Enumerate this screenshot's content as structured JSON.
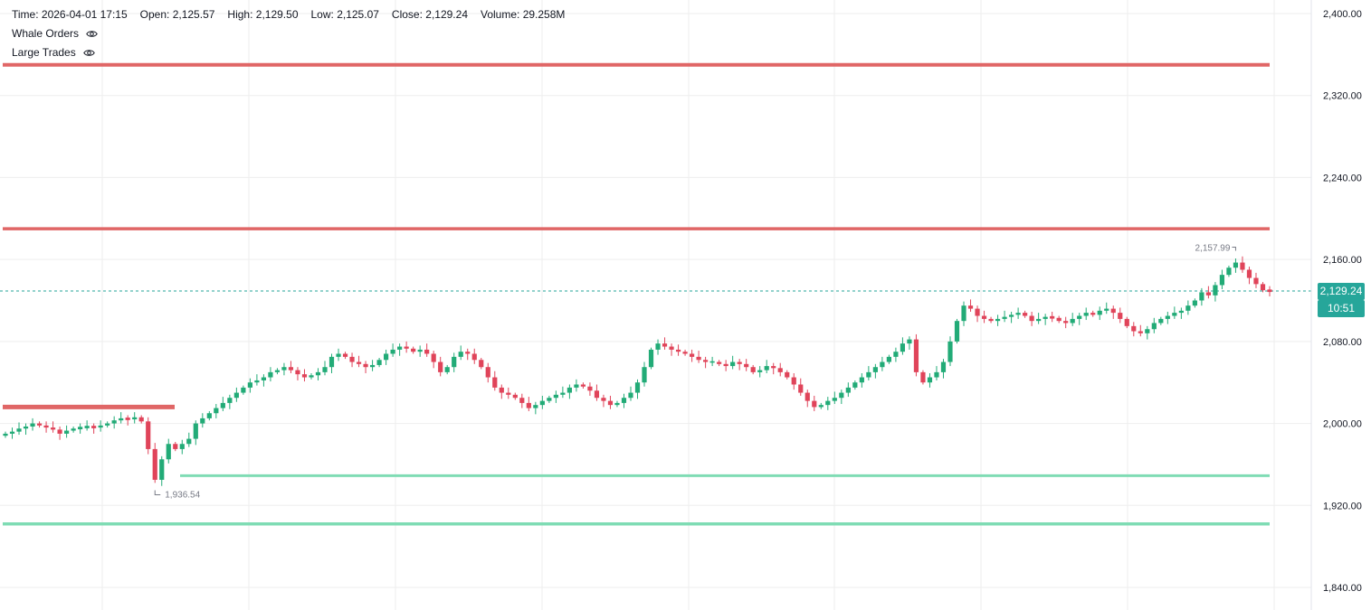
{
  "legend": {
    "time_label": "Time:",
    "time": "2026-04-01 17:15",
    "open_label": "Open:",
    "open": "2,125.57",
    "high_label": "High:",
    "high": "2,129.50",
    "low_label": "Low:",
    "low": "2,125.07",
    "close_label": "Close:",
    "close": "2,129.24",
    "volume_label": "Volume:",
    "volume": "29.258M",
    "indicators": [
      {
        "name": "Whale Orders",
        "icon": "eye-icon"
      },
      {
        "name": "Large Trades",
        "icon": "eye-icon"
      }
    ]
  },
  "colors": {
    "up": "#26a69a",
    "down": "#ef5350",
    "up_body": "#22ab77",
    "down_body": "#e0445a",
    "resistance": "#e06666",
    "support": "#7fdcb4",
    "last_price_line": "#26a69a",
    "grid": "#eeeeee"
  },
  "last_price": {
    "value": "2,129.24",
    "countdown": "10:51"
  },
  "markers": {
    "high": "2,157.99",
    "low": "1,936.54"
  },
  "chart_data": {
    "type": "candlestick",
    "y_axis_position": "right",
    "ylim": [
      1830,
      2410
    ],
    "y_ticks": [
      "2,400.00",
      "2,320.00",
      "2,240.00",
      "2,160.00",
      "2,080.00",
      "2,000.00",
      "1,920.00",
      "1,840.00"
    ],
    "y_tick_values": [
      2400,
      2320,
      2240,
      2160,
      2080,
      2000,
      1920,
      1840
    ],
    "grid": true,
    "last_price": 2129.24,
    "levels": [
      {
        "kind": "resistance",
        "price": 2350
      },
      {
        "kind": "resistance",
        "price": 2190
      },
      {
        "kind": "resistance",
        "price": 2016
      },
      {
        "kind": "support",
        "price": 1949
      },
      {
        "kind": "support",
        "price": 1902
      }
    ],
    "closes": [
      1990,
      1992,
      1995,
      1997,
      2000,
      1998,
      1996,
      1994,
      1990,
      1993,
      1995,
      1996,
      1997,
      1996,
      1998,
      2000,
      2003,
      2005,
      2004,
      2006,
      2002,
      1975,
      1945,
      1965,
      1980,
      1975,
      1980,
      1985,
      2000,
      2005,
      2010,
      2015,
      2020,
      2025,
      2030,
      2035,
      2040,
      2042,
      2045,
      2050,
      2052,
      2055,
      2052,
      2048,
      2045,
      2047,
      2050,
      2055,
      2065,
      2068,
      2065,
      2060,
      2058,
      2055,
      2057,
      2062,
      2068,
      2072,
      2075,
      2073,
      2070,
      2072,
      2068,
      2060,
      2050,
      2055,
      2065,
      2070,
      2068,
      2062,
      2055,
      2045,
      2035,
      2030,
      2028,
      2025,
      2020,
      2015,
      2018,
      2022,
      2025,
      2028,
      2030,
      2035,
      2038,
      2036,
      2032,
      2025,
      2022,
      2018,
      2020,
      2025,
      2030,
      2040,
      2055,
      2072,
      2078,
      2075,
      2072,
      2070,
      2068,
      2065,
      2062,
      2060,
      2060,
      2058,
      2056,
      2060,
      2058,
      2055,
      2050,
      2052,
      2056,
      2054,
      2050,
      2045,
      2038,
      2030,
      2022,
      2016,
      2018,
      2022,
      2025,
      2030,
      2035,
      2040,
      2045,
      2050,
      2055,
      2060,
      2065,
      2070,
      2078,
      2082,
      2050,
      2040,
      2045,
      2050,
      2060,
      2080,
      2100,
      2115,
      2112,
      2105,
      2102,
      2100,
      2102,
      2104,
      2106,
      2108,
      2105,
      2100,
      2102,
      2104,
      2103,
      2100,
      2098,
      2102,
      2105,
      2108,
      2106,
      2110,
      2112,
      2108,
      2102,
      2095,
      2090,
      2088,
      2092,
      2098,
      2102,
      2105,
      2108,
      2110,
      2115,
      2120,
      2128,
      2125,
      2135,
      2145,
      2152,
      2157,
      2150,
      2142,
      2136,
      2130,
      2129
    ]
  }
}
